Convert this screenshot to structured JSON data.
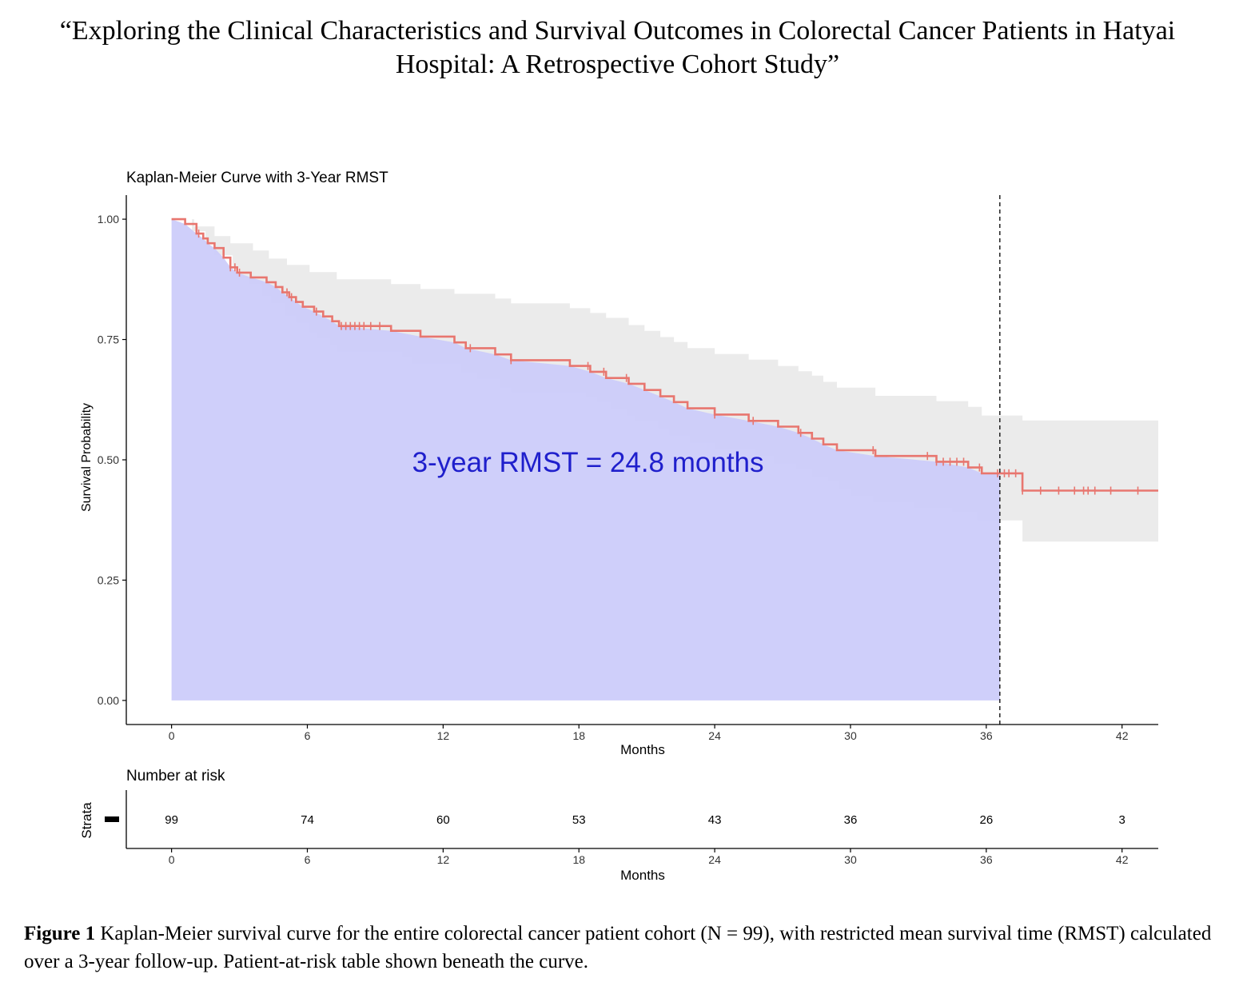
{
  "page": {
    "title": "“Exploring the Clinical Characteristics and Survival Outcomes in Colorectal Cancer Patients in Hatyai Hospital: A Retrospective Cohort Study”",
    "caption_label": "Figure 1",
    "caption_text": " Kaplan-Meier survival curve for the entire colorectal cancer patient cohort (N = 99), with restricted mean survival time (RMST) calculated over a 3-year follow-up. Patient-at-risk table shown beneath the curve."
  },
  "chart_data": [
    {
      "type": "line",
      "subtype": "kaplan-meier step curve with confidence band and shaded RMST area",
      "title": "Kaplan-Meier Curve with 3-Year RMST",
      "xlabel": "Months",
      "ylabel": "Survival Probability",
      "xlim": [
        -2,
        43.6
      ],
      "ylim": [
        -0.05,
        1.05
      ],
      "x_ticks": [
        0,
        6,
        12,
        18,
        24,
        30,
        36,
        42
      ],
      "y_ticks": [
        0,
        0.25,
        0.5,
        0.75,
        1.0
      ],
      "y_tick_labels": [
        "0.00",
        "0.25",
        "0.50",
        "0.75",
        "1.00"
      ],
      "grid": false,
      "rmst_cutoff": 36.6,
      "annotation": "3-year RMST = 24.8 months",
      "colors": {
        "curve": "#e8766f",
        "band": "#ebebeb",
        "rmst_fill": "#ccccfa",
        "annotation": "#1f1fcc",
        "cutoff_line": "#000000"
      },
      "series": [
        {
          "steps": [
            [
              0,
              1.0
            ],
            [
              0.6,
              0.99
            ],
            [
              1.1,
              0.97
            ],
            [
              1.4,
              0.96
            ],
            [
              1.6,
              0.95
            ],
            [
              1.9,
              0.94
            ],
            [
              2.3,
              0.92
            ],
            [
              2.6,
              0.9
            ],
            [
              2.9,
              0.889
            ],
            [
              3.5,
              0.879
            ],
            [
              4.2,
              0.869
            ],
            [
              4.6,
              0.859
            ],
            [
              4.9,
              0.848
            ],
            [
              5.2,
              0.838
            ],
            [
              5.5,
              0.828
            ],
            [
              5.8,
              0.818
            ],
            [
              6.3,
              0.808
            ],
            [
              6.7,
              0.798
            ],
            [
              7.1,
              0.788
            ],
            [
              7.4,
              0.778
            ],
            [
              9.7,
              0.768
            ],
            [
              11.0,
              0.756
            ],
            [
              12.5,
              0.744
            ],
            [
              13.0,
              0.732
            ],
            [
              14.3,
              0.719
            ],
            [
              15.0,
              0.707
            ],
            [
              17.6,
              0.695
            ],
            [
              18.5,
              0.683
            ],
            [
              19.2,
              0.67
            ],
            [
              20.2,
              0.658
            ],
            [
              20.9,
              0.645
            ],
            [
              21.6,
              0.632
            ],
            [
              22.2,
              0.62
            ],
            [
              22.8,
              0.607
            ],
            [
              24.0,
              0.594
            ],
            [
              25.5,
              0.581
            ],
            [
              26.8,
              0.569
            ],
            [
              27.7,
              0.556
            ],
            [
              28.3,
              0.544
            ],
            [
              28.8,
              0.532
            ],
            [
              29.4,
              0.52
            ],
            [
              31.1,
              0.508
            ],
            [
              33.8,
              0.496
            ],
            [
              35.2,
              0.484
            ],
            [
              35.8,
              0.472
            ],
            [
              37.6,
              0.436
            ]
          ],
          "end": 43.6,
          "censored_x": [
            1.2,
            2.6,
            2.8,
            3.0,
            5.1,
            5.3,
            6.4,
            7.5,
            7.7,
            7.9,
            8.1,
            8.3,
            8.5,
            8.8,
            9.2,
            13.2,
            15.0,
            18.4,
            19.1,
            20.1,
            24.0,
            25.7,
            27.8,
            31.0,
            33.4,
            33.8,
            34.1,
            34.4,
            34.7,
            35.0,
            35.7,
            36.5,
            36.8,
            37.0,
            37.3,
            37.6,
            38.4,
            39.2,
            39.9,
            40.3,
            40.5,
            40.8,
            41.5,
            42.7
          ],
          "ci_lower": [
            [
              0,
              1.0
            ],
            [
              0.9,
              0.975
            ],
            [
              1.5,
              0.948
            ],
            [
              1.9,
              0.925
            ],
            [
              2.7,
              0.898
            ],
            [
              3.0,
              0.878
            ],
            [
              3.4,
              0.865
            ],
            [
              4.0,
              0.84
            ],
            [
              4.4,
              0.825
            ],
            [
              5.0,
              0.8
            ],
            [
              5.5,
              0.785
            ],
            [
              6.1,
              0.765
            ],
            [
              6.4,
              0.752
            ],
            [
              7.0,
              0.738
            ],
            [
              7.3,
              0.725
            ],
            [
              10.2,
              0.712
            ],
            [
              10.6,
              0.7
            ],
            [
              12.8,
              0.682
            ],
            [
              13.5,
              0.668
            ],
            [
              14.5,
              0.65
            ],
            [
              15.0,
              0.64
            ],
            [
              18.3,
              0.63
            ],
            [
              18.8,
              0.62
            ],
            [
              19.4,
              0.605
            ],
            [
              20.1,
              0.592
            ],
            [
              20.5,
              0.58
            ],
            [
              21.5,
              0.565
            ],
            [
              22.0,
              0.55
            ],
            [
              22.9,
              0.535
            ],
            [
              24.0,
              0.522
            ],
            [
              25.8,
              0.508
            ],
            [
              26.6,
              0.492
            ],
            [
              27.6,
              0.48
            ],
            [
              28.3,
              0.465
            ],
            [
              29.0,
              0.455
            ],
            [
              29.5,
              0.44
            ],
            [
              30.0,
              0.425
            ],
            [
              31.0,
              0.412
            ],
            [
              32.8,
              0.4
            ],
            [
              34.5,
              0.392
            ],
            [
              35.6,
              0.374
            ],
            [
              37.6,
              0.33
            ]
          ],
          "ci_upper": [
            [
              0,
              1.0
            ],
            [
              1.0,
              0.985
            ],
            [
              1.9,
              0.965
            ],
            [
              2.6,
              0.95
            ],
            [
              3.6,
              0.935
            ],
            [
              4.3,
              0.918
            ],
            [
              5.1,
              0.905
            ],
            [
              6.1,
              0.89
            ],
            [
              7.3,
              0.875
            ],
            [
              9.7,
              0.865
            ],
            [
              11.0,
              0.855
            ],
            [
              12.5,
              0.845
            ],
            [
              14.3,
              0.835
            ],
            [
              15.0,
              0.825
            ],
            [
              17.6,
              0.815
            ],
            [
              18.5,
              0.805
            ],
            [
              19.2,
              0.795
            ],
            [
              20.2,
              0.78
            ],
            [
              20.9,
              0.768
            ],
            [
              21.6,
              0.755
            ],
            [
              22.2,
              0.745
            ],
            [
              22.8,
              0.732
            ],
            [
              24.0,
              0.72
            ],
            [
              25.5,
              0.708
            ],
            [
              26.8,
              0.695
            ],
            [
              27.7,
              0.684
            ],
            [
              28.3,
              0.675
            ],
            [
              28.8,
              0.662
            ],
            [
              29.4,
              0.65
            ],
            [
              31.1,
              0.633
            ],
            [
              33.8,
              0.622
            ],
            [
              35.2,
              0.61
            ],
            [
              35.8,
              0.592
            ],
            [
              37.6,
              0.582
            ]
          ]
        }
      ]
    },
    {
      "type": "table",
      "title": "Number at risk",
      "xlabel": "Months",
      "ylabel": "Strata",
      "x_ticks": [
        0,
        6,
        12,
        18,
        24,
        30,
        36,
        42
      ],
      "values": [
        99,
        74,
        60,
        53,
        43,
        36,
        26,
        3
      ]
    }
  ]
}
